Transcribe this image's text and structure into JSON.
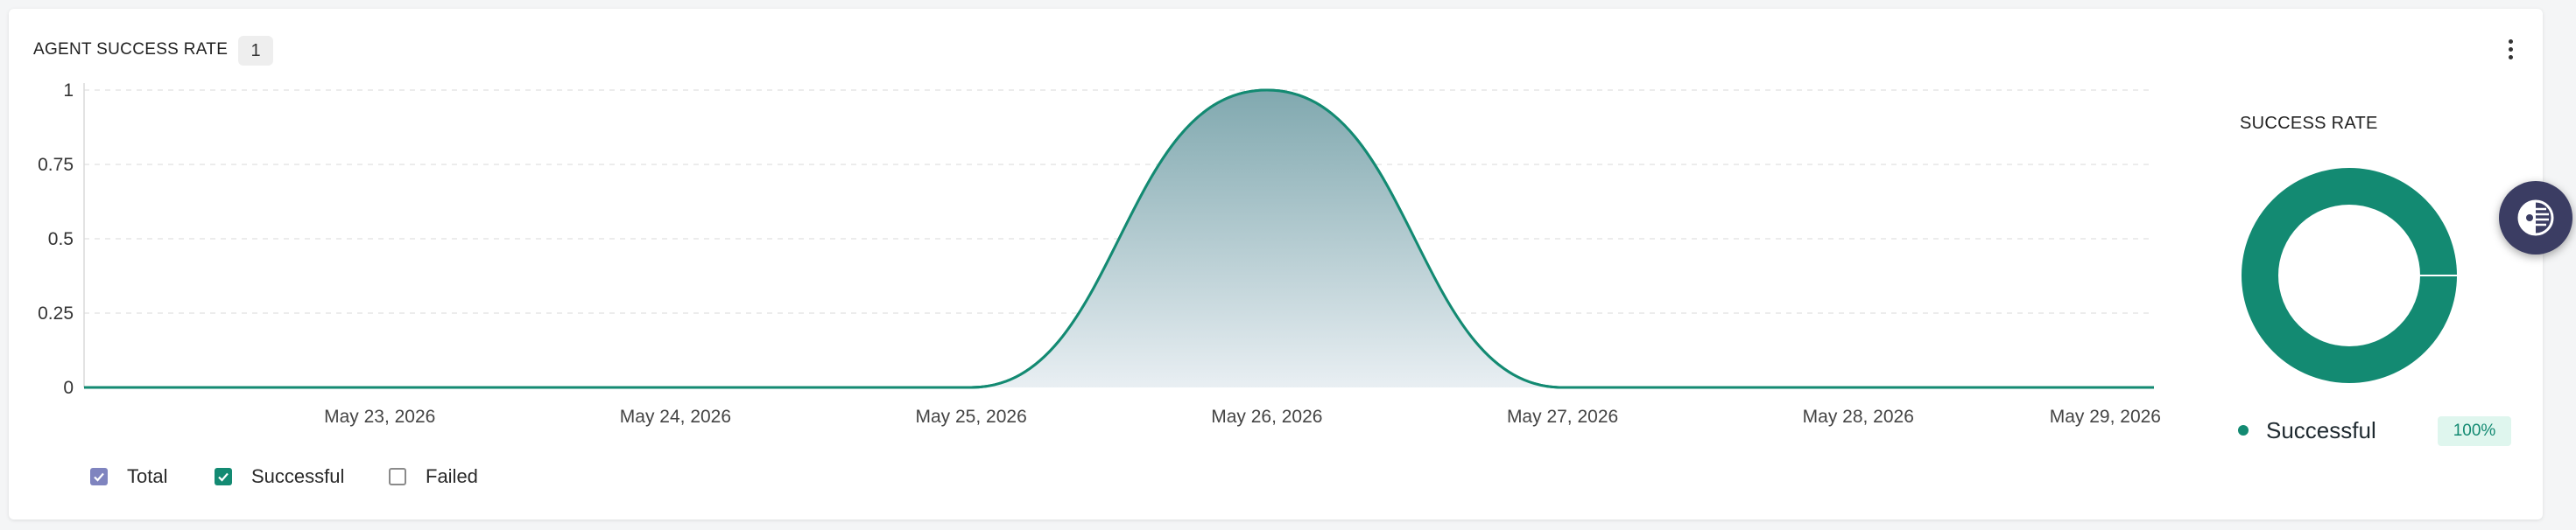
{
  "widget": {
    "title": "AGENT SUCCESS RATE",
    "count": "1"
  },
  "chart_data": {
    "type": "area",
    "x": [
      "May 23, 2026",
      "May 24, 2026",
      "May 25, 2026",
      "May 26, 2026",
      "May 27, 2026",
      "May 28, 2026",
      "May 29, 2026"
    ],
    "x_extent": [
      "May 22, 2026",
      "May 29, 2026"
    ],
    "series": [
      {
        "name": "Total",
        "values": [
          0,
          0,
          0,
          1,
          0,
          0,
          0
        ],
        "checked": true,
        "color": "#7f84bf"
      },
      {
        "name": "Successful",
        "values": [
          0,
          0,
          0,
          1,
          0,
          0,
          0
        ],
        "checked": true,
        "color": "#138a72"
      },
      {
        "name": "Failed",
        "values": [
          0,
          0,
          0,
          0,
          0,
          0,
          0
        ],
        "checked": false,
        "color": "#8a8a8a"
      }
    ],
    "ylim": [
      0,
      1
    ],
    "yticks": [
      "0",
      "0.25",
      "0.5",
      "0.75",
      "1"
    ],
    "grid": true,
    "legend": "bottom-left",
    "xlabel": "",
    "ylabel": ""
  },
  "success_rate": {
    "title": "SUCCESS RATE",
    "chart_data": {
      "type": "pie",
      "categories": [
        "Successful"
      ],
      "values": [
        100
      ],
      "colors": [
        "#138a72"
      ]
    },
    "label": "Successful",
    "percent": "100%"
  },
  "icons": {
    "menu": "more-vertical-icon",
    "assistant": "assistant-logo-icon"
  },
  "colors": {
    "accent": "#138a72",
    "total": "#7f84bf",
    "area_top": "#7aa4ab"
  }
}
